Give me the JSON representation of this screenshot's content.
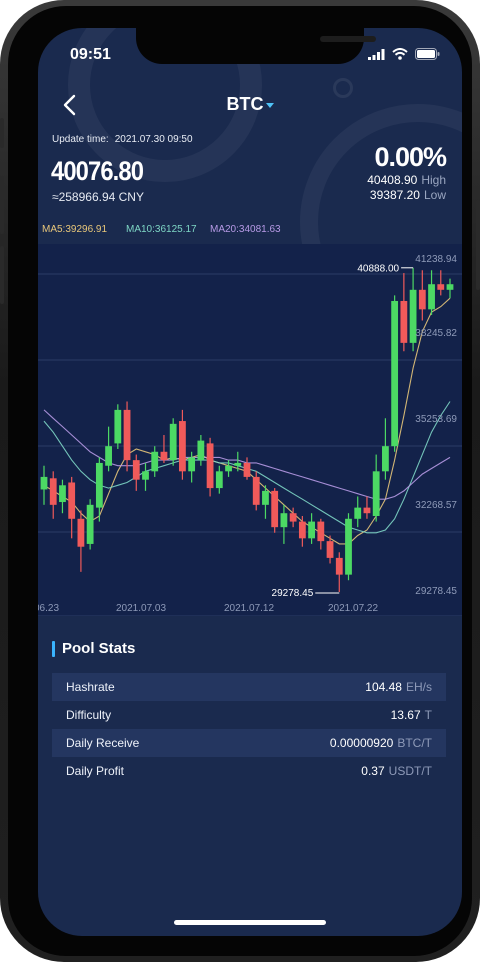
{
  "status_bar": {
    "time": "09:51"
  },
  "header": {
    "symbol": "BTC"
  },
  "ticker": {
    "update_label": "Update time:",
    "update_time": "2021.07.30 09:50",
    "price": "40076.80",
    "cny": "≈258966.94 CNY",
    "change_pct": "0.00%",
    "high": "40408.90",
    "high_label": "High",
    "low": "39387.20",
    "low_label": "Low"
  },
  "ma": {
    "ma5": "MA5:39296.91",
    "ma10": "MA10:36125.17",
    "ma20": "MA20:34081.63"
  },
  "colors": {
    "up": "#4cd964",
    "down": "#f05a5a",
    "ma5": "#e8c77a",
    "ma10": "#7ed6c5",
    "ma20": "#b79ae6",
    "accent": "#3ab4ff"
  },
  "chart_data": {
    "type": "candlestick",
    "y_axis_labels": [
      "41238.94",
      "38245.82",
      "35253.69",
      "32268.57",
      "29278.45"
    ],
    "x_axis_labels": [
      "06.23",
      "2021.07.03",
      "2021.07.12",
      "2021.07.22"
    ],
    "ylim": [
      29278.45,
      41238.94
    ],
    "max_marker": "40888.00",
    "min_marker": "29278.45",
    "candles": [
      {
        "o": 32950,
        "c": 33400,
        "h": 33800,
        "l": 32400
      },
      {
        "o": 33350,
        "c": 32400,
        "h": 33600,
        "l": 31900
      },
      {
        "o": 32500,
        "c": 33100,
        "h": 33300,
        "l": 32100
      },
      {
        "o": 33200,
        "c": 31900,
        "h": 33400,
        "l": 31200
      },
      {
        "o": 31900,
        "c": 30900,
        "h": 32200,
        "l": 30000
      },
      {
        "o": 31000,
        "c": 32400,
        "h": 32600,
        "l": 30800
      },
      {
        "o": 32300,
        "c": 33900,
        "h": 34100,
        "l": 31800
      },
      {
        "o": 33800,
        "c": 34500,
        "h": 35200,
        "l": 33600
      },
      {
        "o": 34600,
        "c": 35800,
        "h": 36000,
        "l": 34400
      },
      {
        "o": 35800,
        "c": 34000,
        "h": 36100,
        "l": 33600
      },
      {
        "o": 34000,
        "c": 33300,
        "h": 34200,
        "l": 32900
      },
      {
        "o": 33300,
        "c": 33600,
        "h": 33900,
        "l": 32900
      },
      {
        "o": 33600,
        "c": 34300,
        "h": 34500,
        "l": 33400
      },
      {
        "o": 34300,
        "c": 34000,
        "h": 34900,
        "l": 33900
      },
      {
        "o": 34000,
        "c": 35300,
        "h": 35500,
        "l": 33800
      },
      {
        "o": 35400,
        "c": 33600,
        "h": 35800,
        "l": 33300
      },
      {
        "o": 33600,
        "c": 34100,
        "h": 34300,
        "l": 33200
      },
      {
        "o": 34000,
        "c": 34700,
        "h": 34900,
        "l": 33800
      },
      {
        "o": 34600,
        "c": 33000,
        "h": 34800,
        "l": 32700
      },
      {
        "o": 33000,
        "c": 33600,
        "h": 33800,
        "l": 32800
      },
      {
        "o": 33600,
        "c": 33800,
        "h": 34000,
        "l": 33400
      },
      {
        "o": 33800,
        "c": 33900,
        "h": 34300,
        "l": 33600
      },
      {
        "o": 33900,
        "c": 33400,
        "h": 34100,
        "l": 33300
      },
      {
        "o": 33400,
        "c": 32400,
        "h": 33600,
        "l": 32200
      },
      {
        "o": 32400,
        "c": 32900,
        "h": 33100,
        "l": 31900
      },
      {
        "o": 32900,
        "c": 31600,
        "h": 33000,
        "l": 31400
      },
      {
        "o": 31600,
        "c": 32100,
        "h": 32400,
        "l": 31000
      },
      {
        "o": 32100,
        "c": 31800,
        "h": 32300,
        "l": 31600
      },
      {
        "o": 31800,
        "c": 31200,
        "h": 32000,
        "l": 30900
      },
      {
        "o": 31200,
        "c": 31800,
        "h": 32100,
        "l": 31000
      },
      {
        "o": 31800,
        "c": 31100,
        "h": 31900,
        "l": 30800
      },
      {
        "o": 31100,
        "c": 30500,
        "h": 31300,
        "l": 30300
      },
      {
        "o": 30500,
        "c": 29900,
        "h": 30700,
        "l": 29278.45
      },
      {
        "o": 29900,
        "c": 31900,
        "h": 32100,
        "l": 29700
      },
      {
        "o": 31900,
        "c": 32300,
        "h": 32700,
        "l": 31600
      },
      {
        "o": 32300,
        "c": 32100,
        "h": 32700,
        "l": 31900
      },
      {
        "o": 32000,
        "c": 33600,
        "h": 34200,
        "l": 31800
      },
      {
        "o": 33600,
        "c": 34500,
        "h": 35500,
        "l": 33300
      },
      {
        "o": 34500,
        "c": 39700,
        "h": 39900,
        "l": 34300
      },
      {
        "o": 39700,
        "c": 38200,
        "h": 40700,
        "l": 37900
      },
      {
        "o": 38200,
        "c": 40100,
        "h": 40888,
        "l": 37900
      },
      {
        "o": 40100,
        "c": 39400,
        "h": 40800,
        "l": 39000
      },
      {
        "o": 39400,
        "c": 40300,
        "h": 40800,
        "l": 39200
      },
      {
        "o": 40300,
        "c": 40100,
        "h": 40800,
        "l": 39900
      },
      {
        "o": 40100,
        "c": 40300,
        "h": 40500,
        "l": 39800
      }
    ],
    "ma_series": {
      "ma5": [
        33100,
        32900,
        32700,
        32500,
        32100,
        31800,
        32000,
        32800,
        33600,
        34200,
        34400,
        34300,
        34200,
        34000,
        34100,
        34000,
        34100,
        34200,
        34000,
        33900,
        33800,
        33700,
        33600,
        33300,
        33000,
        32700,
        32400,
        32100,
        31800,
        31600,
        31400,
        31200,
        31000,
        31000,
        31300,
        31500,
        32000,
        32600,
        34000,
        35600,
        37300,
        38600,
        39300,
        39500,
        39800
      ],
      "ma10": [
        35400,
        35000,
        34500,
        34000,
        33600,
        33300,
        33100,
        33000,
        33100,
        33200,
        33400,
        33600,
        33700,
        33800,
        33900,
        34000,
        34000,
        34000,
        34000,
        33900,
        33900,
        33800,
        33700,
        33600,
        33400,
        33200,
        33000,
        32800,
        32600,
        32400,
        32200,
        32000,
        31800,
        31600,
        31500,
        31400,
        31400,
        31500,
        31900,
        32600,
        33400,
        34200,
        35000,
        35600,
        36100
      ],
      "ma20": [
        35800,
        35500,
        35200,
        34900,
        34600,
        34300,
        34100,
        33900,
        33800,
        33800,
        33800,
        33900,
        34000,
        34000,
        34000,
        34100,
        34100,
        34100,
        34100,
        34100,
        34000,
        34000,
        33900,
        33900,
        33800,
        33700,
        33600,
        33500,
        33400,
        33300,
        33200,
        33100,
        33000,
        32900,
        32800,
        32700,
        32600,
        32600,
        32700,
        32900,
        33200,
        33500,
        33700,
        33900,
        34100
      ]
    }
  },
  "pool_stats": {
    "title": "Pool Stats",
    "rows": [
      {
        "label": "Hashrate",
        "value": "104.48",
        "unit": "EH/s"
      },
      {
        "label": "Difficulty",
        "value": "13.67",
        "unit": "T"
      },
      {
        "label": "Daily Receive",
        "value": "0.00000920",
        "unit": "BTC/T"
      },
      {
        "label": "Daily Profit",
        "value": "0.37",
        "unit": "USDT/T"
      }
    ]
  }
}
